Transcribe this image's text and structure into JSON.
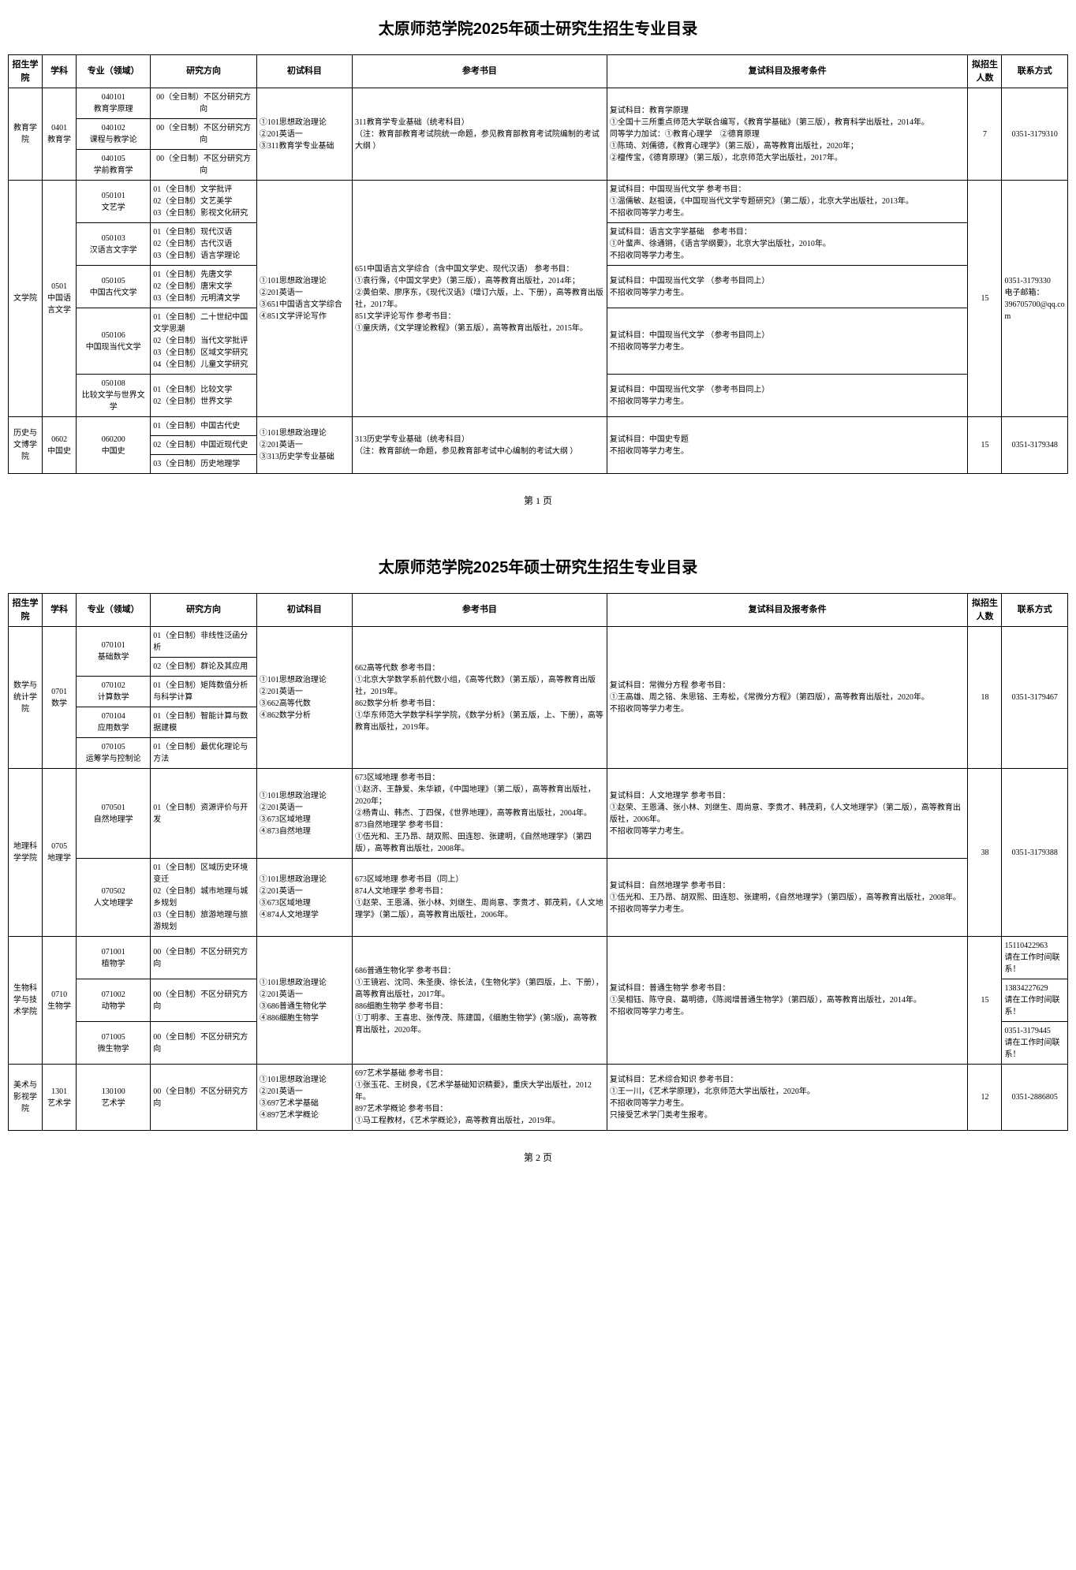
{
  "doc_title": "太原师范学院2025年硕士研究生招生专业目录",
  "page1_num": "第 1 页",
  "page2_num": "第 2 页",
  "headers": {
    "college": "招生学院",
    "subject": "学科",
    "major": "专业（领域）",
    "direction": "研究方向",
    "initial": "初试科目",
    "ref": "参考书目",
    "retest": "复试科目及报考条件",
    "quota": "拟招生人数",
    "contact": "联系方式"
  },
  "page1": {
    "r1": {
      "college": "教育学院",
      "subject": "0401\n教育学",
      "major": "040101\n教育学原理",
      "direction": "00（全日制）不区分研究方向",
      "initial": "①101思想政治理论\n②201英语一\n③311教育学专业基础",
      "ref": "311教育学专业基础（统考科目）\n（注：教育部教育考试院统一命题，参见教育部教育考试院编制的考试大纲 ）",
      "retest": "复试科目：教育学原理\n①全国十三所重点师范大学联合编写，《教育学基础》（第三版），教育科学出版社，2014年。\n同等学力加试：①教育心理学　②德育原理\n①陈琦、刘儒德，《教育心理学》（第三版），高等教育出版社，2020年；\n②檀传宝，《德育原理》（第三版），北京师范大学出版社，2017年。",
      "quota": "7",
      "contact": "0351-3179310"
    },
    "r2": {
      "major": "040102\n课程与教学论",
      "direction": "00（全日制）不区分研究方向"
    },
    "r3": {
      "major": "040105\n学前教育学",
      "direction": "00（全日制）不区分研究方向"
    },
    "r4": {
      "college": "文学院",
      "subject": "0501\n中国语言文学",
      "major": "050101\n文艺学",
      "direction": "01（全日制）文学批评\n02（全日制）文艺美学\n03（全日制）影视文化研究",
      "initial": "①101思想政治理论\n②201英语一\n③651中国语言文学综合\n④851文学评论写作",
      "ref": "651中国语言文学综合（含中国文学史、现代汉语） 参考书目：\n①袁行霈，《中国文学史》（第三版），高等教育出版社，2014年；\n②黄伯荣、廖序东，《现代汉语》（增订六版，上、下册），高等教育出版社，2017年。\n851文学评论写作 参考书目：\n①童庆炳，《文学理论教程》（第五版），高等教育出版社，2015年。",
      "retest": "复试科目：中国现当代文学 参考书目：\n①温儒敏、赵祖谟，《中国现当代文学专题研究》（第二版），北京大学出版社，2013年。\n不招收同等学力考生。",
      "quota": "15",
      "contact": "0351-3179330\n电子邮箱：\n396705700@qq.com"
    },
    "r5": {
      "major": "050103\n汉语言文字学",
      "direction": "01（全日制）现代汉语\n02（全日制）古代汉语\n03（全日制）语言学理论",
      "retest": "复试科目：语言文字学基础　参考书目：\n①叶蜚声、徐通锵，《语言学纲要》，北京大学出版社，2010年。\n不招收同等学力考生。"
    },
    "r6": {
      "major": "050105\n中国古代文学",
      "direction": "01（全日制）先唐文学\n02（全日制）唐宋文学\n03（全日制）元明清文学",
      "retest": "复试科目：中国现当代文学 （参考书目同上）\n不招收同等学力考生。"
    },
    "r7": {
      "major": "050106\n中国现当代文学",
      "direction": "01（全日制）二十世纪中国文学思潮\n02（全日制）当代文学批评\n03（全日制）区域文学研究\n04（全日制）儿童文学研究",
      "retest": "复试科目：中国现当代文学 （参考书目同上）\n不招收同等学力考生。"
    },
    "r8": {
      "major": "050108\n比较文学与世界文学",
      "direction": "01（全日制）比较文学\n02（全日制）世界文学",
      "retest": "复试科目：中国现当代文学 （参考书目同上）\n不招收同等学力考生。"
    },
    "r9": {
      "college": "历史与文博学院",
      "subject": "0602\n中国史",
      "major": "060200\n中国史",
      "d1": "01（全日制）中国古代史",
      "d2": "02（全日制）中国近现代史",
      "d3": "03（全日制）历史地理学",
      "initial": "①101思想政治理论\n②201英语一\n③313历史学专业基础",
      "ref": "313历史学专业基础（统考科目）\n（注：教育部统一命题，参见教育部考试中心编制的考试大纲 ）",
      "retest": "复试科目：中国史专题\n不招收同等学力考生。",
      "quota": "15",
      "contact": "0351-3179348"
    }
  },
  "page2": {
    "r1": {
      "college": "数学与统计学院",
      "subject": "0701\n数学",
      "major": "070101\n基础数学",
      "d1": "01（全日制）非线性泛函分析",
      "d2": "02（全日制）群论及其应用",
      "initial": "①101思想政治理论\n②201英语一\n③662高等代数\n④862数学分析",
      "ref": "662高等代数 参考书目：\n①北京大学数学系前代数小组，《高等代数》（第五版），高等教育出版社，2019年。\n862数学分析 参考书目：\n①华东师范大学数学科学学院，《数学分析》（第五版，上、下册），高等教育出版社，2019年。",
      "retest": "复试科目：常微分方程 参考书目：\n①王高雄、周之铭、朱思铭、王寿松，《常微分方程》（第四版），高等教育出版社，2020年。\n不招收同等学力考生。",
      "quota": "18",
      "contact": "0351-3179467"
    },
    "r2": {
      "major": "070102\n计算数学",
      "direction": "01（全日制）矩阵数值分析与科学计算"
    },
    "r3": {
      "major": "070104\n应用数学",
      "direction": "01（全日制）智能计算与数据建模"
    },
    "r4": {
      "major": "070105\n运筹学与控制论",
      "direction": "01（全日制）最优化理论与方法"
    },
    "r5": {
      "college": "地理科学学院",
      "subject": "0705\n地理学",
      "major": "070501\n自然地理学",
      "direction": "01（全日制）资源评价与开发",
      "initial": "①101思想政治理论\n②201英语一\n③673区域地理\n④873自然地理",
      "ref": "673区域地理 参考书目：\n①赵济、王静爱、朱华颖，《中国地理》（第二版），高等教育出版社，2020年；\n②杨青山、韩杰、丁四保，《世界地理》，高等教育出版社，2004年。\n873自然地理学 参考书目：\n①伍光和、王乃昂、胡双熙、田连恕、张建明，《自然地理学》（第四版），高等教育出版社，2008年。",
      "retest": "复试科目：人文地理学 参考书目：\n①赵荣、王恩涌、张小林、刘继生、周尚意、李贵才、韩茂莉，《人文地理学》（第二版），高等教育出版社，2006年。\n不招收同等学力考生。",
      "quota": "38",
      "contact": "0351-3179388"
    },
    "r6": {
      "major": "070502\n人文地理学",
      "direction": "01（全日制）区域历史环境变迁\n02（全日制）城市地理与城乡规划\n03（全日制）旅游地理与旅游规划",
      "initial": "①101思想政治理论\n②201英语一\n③673区域地理\n④874人文地理学",
      "ref": "673区域地理 参考书目（同上）\n874人文地理学 参考书目：\n①赵荣、王恩涌、张小林、刘继生、周尚意、李贵才、郭茂莉，《人文地理学》（第二版），高等教育出版社，2006年。",
      "retest": "复试科目：自然地理学 参考书目：\n①伍光和、王乃昂、胡双熙、田连恕、张建明，《自然地理学》（第四版），高等教育出版社，2008年。\n不招收同等学力考生。"
    },
    "r7": {
      "college": "生物科学与技术学院",
      "subject": "0710\n生物学",
      "major": "071001\n植物学",
      "direction": "00（全日制）不区分研究方向",
      "initial": "①101思想政治理论\n②201英语一\n③686普通生物化学\n④886细胞生物学",
      "ref": "686普通生物化学 参考书目：\n①王镜岩、沈同、朱圣庚、徐长法，《生物化学》（第四版，上、下册），高等教育出版社，2017年。\n886细胞生物学 参考书目：\n①丁明孝、王喜忠、张传茂、陈建国，《细胞生物学》(第5版)，高等教育出版社，2020年。",
      "retest": "复试科目：普通生物学 参考书目：\n①吴相钰、陈守良、葛明德，《陈阅增普通生物学》（第四版），高等教育出版社，2014年。\n不招收同等学力考生。",
      "quota": "15",
      "c1": "15110422963\n请在工作时间联系！",
      "c2": "13834227629\n请在工作时间联系！",
      "c3": "0351-3179445\n请在工作时间联系！"
    },
    "r8": {
      "major": "071002\n动物学",
      "direction": "00（全日制）不区分研究方向"
    },
    "r9": {
      "major": "071005\n微生物学",
      "direction": "00（全日制）不区分研究方向"
    },
    "r10": {
      "college": "美术与影视学院",
      "subject": "1301\n艺术学",
      "major": "130100\n艺术学",
      "direction": "00（全日制）不区分研究方向",
      "initial": "①101思想政治理论\n②201英语一\n③697艺术学基础\n④897艺术学概论",
      "ref": "697艺术学基础 参考书目：\n①张玉花、王树良，《艺术学基础知识精要》，重庆大学出版社，2012年。\n897艺术学概论 参考书目：\n①马工程教材，《艺术学概论》，高等教育出版社，2019年。",
      "retest": "复试科目：艺术综合知识 参考书目：\n①王一川，《艺术学原理》，北京师范大学出版社，2020年。\n不招收同等学力考生。\n只接受艺术学门类考生报考。",
      "quota": "12",
      "contact": "0351-2886805"
    }
  }
}
